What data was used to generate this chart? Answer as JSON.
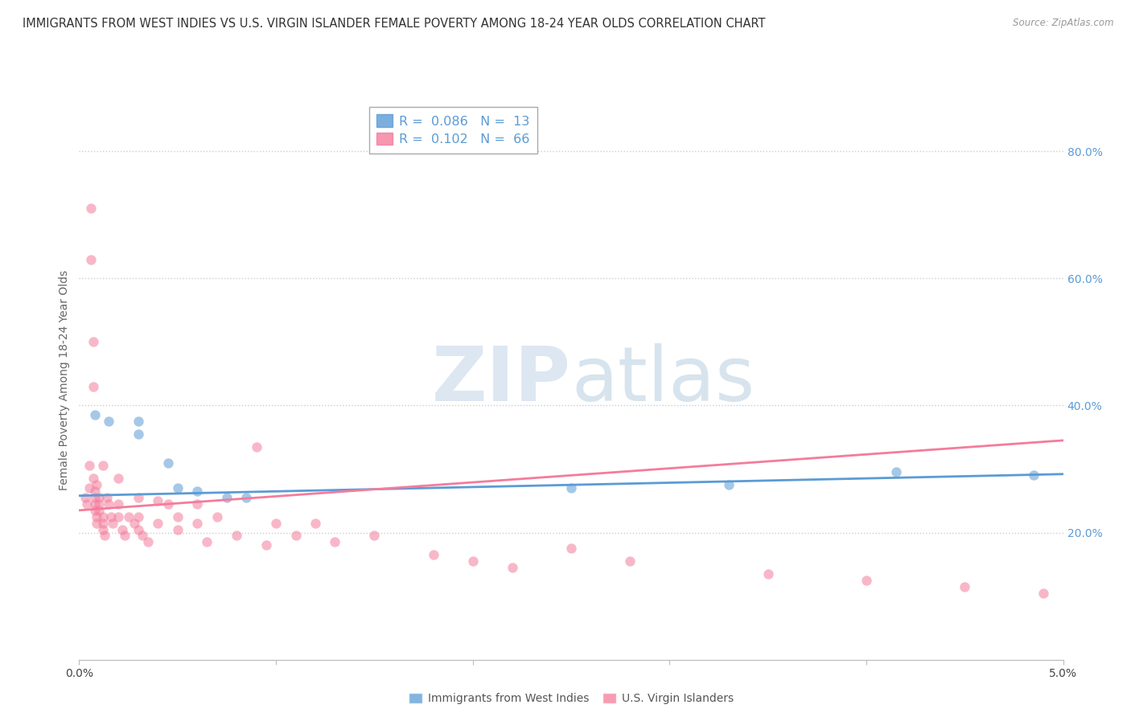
{
  "title": "IMMIGRANTS FROM WEST INDIES VS U.S. VIRGIN ISLANDER FEMALE POVERTY AMONG 18-24 YEAR OLDS CORRELATION CHART",
  "source": "Source: ZipAtlas.com",
  "ylabel": "Female Poverty Among 18-24 Year Olds",
  "x_min": 0.0,
  "x_max": 0.05,
  "y_min": 0.0,
  "y_max": 0.88,
  "y_ticks": [
    0.0,
    0.2,
    0.4,
    0.6,
    0.8
  ],
  "y_tick_labels": [
    "",
    "20.0%",
    "40.0%",
    "60.0%",
    "80.0%"
  ],
  "legend_entries": [
    {
      "label": "R =  0.086   N =  13",
      "color": "#5b9bd5"
    },
    {
      "label": "R =  0.102   N =  66",
      "color": "#f47c9b"
    }
  ],
  "legend_series": [
    {
      "name": "Immigrants from West Indies",
      "color": "#5b9bd5"
    },
    {
      "name": "U.S. Virgin Islanders",
      "color": "#f47c9b"
    }
  ],
  "watermark_zip": "ZIP",
  "watermark_atlas": "atlas",
  "blue_scatter": [
    [
      0.0008,
      0.385
    ],
    [
      0.0015,
      0.375
    ],
    [
      0.003,
      0.375
    ],
    [
      0.003,
      0.355
    ],
    [
      0.0045,
      0.31
    ],
    [
      0.005,
      0.27
    ],
    [
      0.006,
      0.265
    ],
    [
      0.0075,
      0.255
    ],
    [
      0.0085,
      0.255
    ],
    [
      0.025,
      0.27
    ],
    [
      0.033,
      0.275
    ],
    [
      0.0415,
      0.295
    ],
    [
      0.0485,
      0.29
    ]
  ],
  "pink_scatter": [
    [
      0.0003,
      0.255
    ],
    [
      0.0004,
      0.245
    ],
    [
      0.0005,
      0.27
    ],
    [
      0.0005,
      0.305
    ],
    [
      0.0006,
      0.71
    ],
    [
      0.0006,
      0.63
    ],
    [
      0.0007,
      0.5
    ],
    [
      0.0007,
      0.43
    ],
    [
      0.0007,
      0.285
    ],
    [
      0.0008,
      0.265
    ],
    [
      0.0008,
      0.255
    ],
    [
      0.0008,
      0.245
    ],
    [
      0.0008,
      0.235
    ],
    [
      0.0009,
      0.225
    ],
    [
      0.0009,
      0.215
    ],
    [
      0.0009,
      0.275
    ],
    [
      0.001,
      0.255
    ],
    [
      0.001,
      0.245
    ],
    [
      0.001,
      0.235
    ],
    [
      0.0012,
      0.225
    ],
    [
      0.0012,
      0.215
    ],
    [
      0.0012,
      0.305
    ],
    [
      0.0012,
      0.205
    ],
    [
      0.0013,
      0.195
    ],
    [
      0.0014,
      0.255
    ],
    [
      0.0015,
      0.245
    ],
    [
      0.0016,
      0.225
    ],
    [
      0.0017,
      0.215
    ],
    [
      0.002,
      0.285
    ],
    [
      0.002,
      0.245
    ],
    [
      0.002,
      0.225
    ],
    [
      0.0022,
      0.205
    ],
    [
      0.0023,
      0.195
    ],
    [
      0.0025,
      0.225
    ],
    [
      0.0028,
      0.215
    ],
    [
      0.003,
      0.255
    ],
    [
      0.003,
      0.225
    ],
    [
      0.003,
      0.205
    ],
    [
      0.0032,
      0.195
    ],
    [
      0.0035,
      0.185
    ],
    [
      0.004,
      0.25
    ],
    [
      0.004,
      0.215
    ],
    [
      0.0045,
      0.245
    ],
    [
      0.005,
      0.225
    ],
    [
      0.005,
      0.205
    ],
    [
      0.006,
      0.245
    ],
    [
      0.006,
      0.215
    ],
    [
      0.0065,
      0.185
    ],
    [
      0.007,
      0.225
    ],
    [
      0.008,
      0.195
    ],
    [
      0.009,
      0.335
    ],
    [
      0.0095,
      0.18
    ],
    [
      0.01,
      0.215
    ],
    [
      0.011,
      0.195
    ],
    [
      0.012,
      0.215
    ],
    [
      0.013,
      0.185
    ],
    [
      0.015,
      0.195
    ],
    [
      0.018,
      0.165
    ],
    [
      0.02,
      0.155
    ],
    [
      0.022,
      0.145
    ],
    [
      0.025,
      0.175
    ],
    [
      0.028,
      0.155
    ],
    [
      0.035,
      0.135
    ],
    [
      0.04,
      0.125
    ],
    [
      0.045,
      0.115
    ],
    [
      0.049,
      0.105
    ]
  ],
  "blue_line": {
    "x0": 0.0,
    "y0": 0.258,
    "x1": 0.05,
    "y1": 0.292
  },
  "pink_line": {
    "x0": 0.0,
    "y0": 0.235,
    "x1": 0.05,
    "y1": 0.345
  },
  "grid_color": "#cccccc",
  "dot_size": 80,
  "dot_alpha": 0.55,
  "background_color": "#ffffff",
  "title_fontsize": 10.5,
  "axis_label_fontsize": 10,
  "tick_fontsize": 10,
  "right_tick_color": "#5b9bd5"
}
